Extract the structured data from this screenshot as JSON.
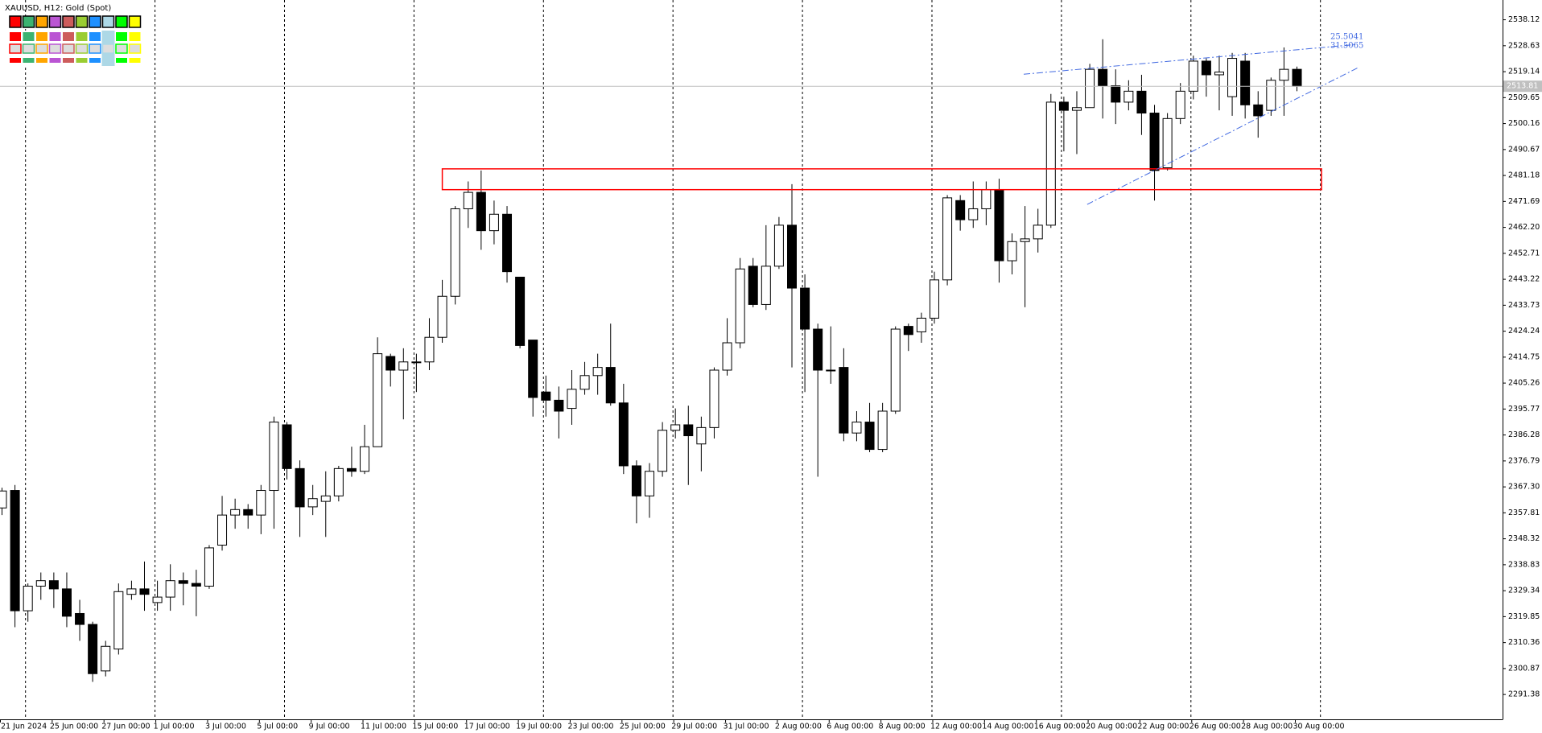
{
  "chart_data": {
    "type": "candlestick",
    "title": "XAUUSD, H12:  Gold (Spot)",
    "categories": [
      "21 Jun 2024",
      null,
      null,
      null,
      "25 Jun 00:00",
      null,
      null,
      null,
      "27 Jun 00:00",
      null,
      null,
      null,
      "1 Jul 00:00",
      null,
      null,
      null,
      "3 Jul 00:00",
      null,
      null,
      null,
      "5 Jul 00:00",
      null,
      null,
      null,
      "9 Jul 00:00",
      null,
      null,
      null,
      "11 Jul 00:00",
      null,
      null,
      null,
      "15 Jul 00:00",
      null,
      null,
      null,
      "17 Jul 00:00",
      null,
      null,
      null,
      "19 Jul 00:00",
      null,
      null,
      null,
      "23 Jul 00:00",
      null,
      null,
      null,
      "25 Jul 00:00",
      null,
      null,
      null,
      "29 Jul 00:00",
      null,
      null,
      null,
      "31 Jul 00:00",
      null,
      null,
      null,
      "2 Aug 00:00",
      null,
      null,
      null,
      "6 Aug 00:00",
      null,
      null,
      null,
      "8 Aug 00:00",
      null,
      null,
      null,
      "12 Aug 00:00",
      null,
      null,
      null,
      "14 Aug 00:00",
      null,
      null,
      null,
      "16 Aug 00:00",
      null,
      null,
      null,
      "20 Aug 00:00",
      null,
      null,
      null,
      "22 Aug 00:00",
      null,
      null,
      null,
      "26 Aug 00:00",
      null,
      null,
      null,
      "28 Aug 00:00",
      null,
      null,
      null,
      "30 Aug 00:00"
    ],
    "open": [
      2359.6,
      2366,
      2322,
      2331,
      2333,
      2330,
      2321,
      2317,
      2300,
      2308,
      2328,
      2330,
      2325,
      2327,
      2333,
      2332,
      2331,
      2346,
      2357,
      2359,
      2357,
      2366,
      2390,
      2374,
      2360,
      2362,
      2364,
      2374,
      2373,
      2382,
      2415,
      2410,
      2413,
      2413,
      2422,
      2437,
      2469,
      2475,
      2461,
      2467,
      2444,
      2421,
      2402,
      2399,
      2396,
      2403,
      2408,
      2411,
      2398,
      2375,
      2364,
      2373,
      2388,
      2390,
      2383,
      2389,
      2410,
      2420,
      2448,
      2434,
      2448,
      2463,
      2440,
      2425,
      2410,
      2411,
      2387,
      2391,
      2381,
      2395,
      2426,
      2424,
      2429,
      2443,
      2472,
      2465,
      2469,
      2476,
      2450,
      2457,
      2458,
      2463,
      2508,
      2505,
      2506,
      2520,
      2514,
      2508,
      2512,
      2504,
      2484,
      2502,
      2512,
      2523,
      2518,
      2510,
      2523,
      2507,
      2505,
      2516,
      2520
    ],
    "high": [
      2367,
      2368,
      2332,
      2336,
      2336,
      2336,
      2326,
      2318,
      2311,
      2332,
      2333,
      2340,
      2333,
      2339,
      2336,
      2337,
      2346,
      2364,
      2363,
      2361,
      2368,
      2393,
      2391,
      2377,
      2368,
      2373,
      2375,
      2382,
      2390,
      2422,
      2416,
      2418,
      2416,
      2429,
      2443,
      2470,
      2479,
      2483,
      2472,
      2470,
      2444,
      2421,
      2408,
      2404,
      2410,
      2413,
      2416,
      2427,
      2405,
      2377,
      2376,
      2391,
      2396,
      2397,
      2393,
      2411,
      2429,
      2451,
      2451,
      2463,
      2466,
      2478,
      2445,
      2427,
      2426,
      2418,
      2395,
      2398,
      2398,
      2426,
      2427,
      2431,
      2446,
      2474,
      2474,
      2479,
      2479,
      2480,
      2460,
      2470,
      2469,
      2511,
      2510,
      2512,
      2522,
      2531,
      2520,
      2516,
      2518,
      2507,
      2504,
      2515,
      2525,
      2524,
      2525,
      2526,
      2526,
      2512,
      2517,
      2528,
      2521
    ],
    "low": [
      2357,
      2316,
      2318,
      2326,
      2323,
      2316,
      2311,
      2296,
      2298,
      2306,
      2326,
      2322,
      2322,
      2322,
      2324,
      2320,
      2330,
      2344,
      2352,
      2352,
      2350,
      2352,
      2370,
      2349,
      2357,
      2349,
      2362,
      2371,
      2372,
      2382,
      2404,
      2392,
      2402,
      2410,
      2420,
      2434,
      2462,
      2454,
      2456,
      2442,
      2418,
      2393,
      2393,
      2385,
      2390,
      2401,
      2401,
      2397,
      2372,
      2354,
      2356,
      2371,
      2385,
      2368,
      2373,
      2385,
      2408,
      2418,
      2433,
      2432,
      2447,
      2411,
      2402,
      2371,
      2405,
      2384,
      2384,
      2380,
      2380,
      2394,
      2417,
      2420,
      2427,
      2441,
      2461,
      2462,
      2463,
      2442,
      2445,
      2433,
      2453,
      2462,
      2490,
      2489,
      2506,
      2502,
      2500,
      2505,
      2496,
      2472,
      2483,
      2500,
      2509,
      2510,
      2505,
      2503,
      2502,
      2495,
      2503,
      2503,
      2512
    ],
    "close": [
      2365.8,
      2322,
      2331,
      2333,
      2330,
      2320,
      2317,
      2299,
      2309,
      2329,
      2330,
      2328,
      2327,
      2333,
      2332,
      2331,
      2345,
      2357,
      2359,
      2357,
      2366,
      2391,
      2374,
      2360,
      2363,
      2364,
      2374,
      2373,
      2382,
      2416,
      2410,
      2413,
      2413,
      2422,
      2437,
      2469,
      2475,
      2461,
      2467,
      2446,
      2419,
      2400,
      2399,
      2395,
      2403,
      2408,
      2411,
      2398,
      2375,
      2364,
      2373,
      2388,
      2390,
      2386,
      2389,
      2410,
      2420,
      2447,
      2434,
      2448,
      2463,
      2440,
      2425,
      2410,
      2410,
      2387,
      2391,
      2381,
      2395,
      2425,
      2423,
      2429,
      2443,
      2473,
      2465,
      2469,
      2476,
      2450,
      2457,
      2458,
      2463,
      2508,
      2505,
      2506,
      2520,
      2514,
      2508,
      2512,
      2504,
      2483,
      2502,
      2512,
      2523,
      2518,
      2519,
      2524,
      2507,
      2503,
      2516,
      2520,
      2513.81
    ],
    "up_color": "#ffffff",
    "down_color": "#000000",
    "ylim": [
      2282.3,
      2545.35
    ],
    "yticks": [
      2291.38,
      2300.87,
      2310.36,
      2319.85,
      2329.34,
      2338.83,
      2348.32,
      2357.81,
      {
        "value": 2367.3,
        "label": "2367.30"
      },
      2376.79,
      2386.28,
      2395.77,
      2405.26,
      2414.75,
      2424.24,
      2433.73,
      2443.22,
      2452.71,
      {
        "value": 2462.2,
        "label": "2462.20"
      },
      2471.69,
      2481.18,
      2490.67,
      2500.16,
      2509.65,
      2519.14,
      2528.63,
      2538.12
    ],
    "last_price": 2513.81,
    "zone": {
      "x0": 34.0,
      "x1": 101.9,
      "low": 2476.0,
      "high": 2483.6,
      "color": "#ff0000"
    },
    "trendlines": [
      {
        "x": [
          78.9,
          104.6
        ],
        "y": [
          2518.2,
          2529.1
        ],
        "color": "#4169e1",
        "label": "25.5041"
      },
      {
        "x": [
          83.8,
          104.8
        ],
        "y": [
          2470.6,
          2520.8
        ],
        "color": "#4169e1",
        "label": "31.5065"
      }
    ]
  }
}
